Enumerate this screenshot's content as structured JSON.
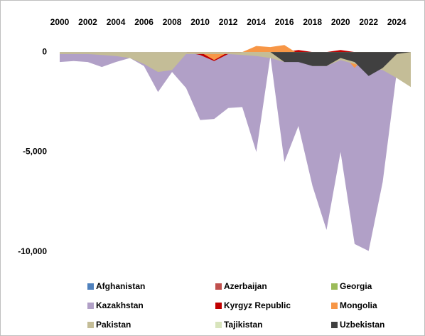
{
  "chart_data": {
    "type": "area",
    "x": [
      2000,
      2001,
      2002,
      2003,
      2004,
      2005,
      2006,
      2007,
      2008,
      2009,
      2010,
      2011,
      2012,
      2013,
      2014,
      2015,
      2016,
      2017,
      2018,
      2019,
      2020,
      2021,
      2022,
      2023,
      2024,
      2025
    ],
    "xticks": [
      2000,
      2002,
      2004,
      2006,
      2008,
      2010,
      2012,
      2014,
      2016,
      2018,
      2020,
      2022,
      2024
    ],
    "xlim": [
      2000,
      2025
    ],
    "ylim": [
      1000,
      -10750
    ],
    "yticks": [
      0,
      {
        "value": -5000,
        "label": "-5,000"
      },
      {
        "value": -10000,
        "label": "-10,000"
      }
    ],
    "legend": "bottom",
    "series": [
      {
        "name": "Afghanistan",
        "color": "#4f81bd",
        "values": [
          0,
          0,
          0,
          0,
          0,
          0,
          0,
          0,
          0,
          0,
          0,
          0,
          0,
          0,
          0,
          0,
          0,
          0,
          0,
          0,
          0,
          0,
          0,
          0,
          0,
          0
        ]
      },
      {
        "name": "Azerbaijan",
        "color": "#c0504d",
        "values": [
          0,
          0,
          0,
          0,
          0,
          0,
          0,
          0,
          0,
          0,
          0,
          0,
          0,
          0,
          0,
          0,
          0,
          0,
          0,
          0,
          0,
          0,
          0,
          0,
          0,
          0
        ]
      },
      {
        "name": "Georgia",
        "color": "#9bbb59",
        "values": [
          0,
          0,
          0,
          0,
          0,
          0,
          0,
          0,
          0,
          0,
          0,
          0,
          0,
          0,
          0,
          0,
          0,
          0,
          0,
          0,
          0,
          0,
          0,
          0,
          0,
          0
        ]
      },
      {
        "name": "Kazakhstan",
        "color": "#b1a0c7",
        "values": [
          -500,
          -450,
          -500,
          -750,
          -500,
          -300,
          -700,
          -2000,
          -1000,
          -1800,
          -3400,
          -3350,
          -2800,
          -2750,
          -5000,
          -200,
          -5500,
          -3700,
          -6700,
          -8900,
          -5000,
          -9600,
          -9950,
          -6500,
          -1000,
          0
        ]
      },
      {
        "name": "Kyrgyz Republic",
        "color": "#c00000",
        "values": [
          0,
          0,
          0,
          0,
          0,
          0,
          0,
          0,
          0,
          0,
          -150,
          -450,
          -100,
          0,
          0,
          0,
          0,
          100,
          0,
          0,
          100,
          0,
          0,
          0,
          0,
          0
        ]
      },
      {
        "name": "Mongolia",
        "color": "#f79646",
        "values": [
          0,
          0,
          0,
          0,
          0,
          0,
          0,
          0,
          0,
          0,
          0,
          -400,
          0,
          0,
          300,
          250,
          350,
          -100,
          0,
          0,
          0,
          -800,
          0,
          0,
          0,
          0
        ]
      },
      {
        "name": "Pakistan",
        "color": "#c4bd97",
        "values": [
          -100,
          -100,
          -100,
          -150,
          -200,
          -300,
          -600,
          -1000,
          -900,
          -100,
          -100,
          -100,
          -100,
          -150,
          -200,
          -300,
          -500,
          -400,
          -700,
          -700,
          -400,
          -600,
          -800,
          -900,
          -1300,
          -1750
        ]
      },
      {
        "name": "Tajikistan",
        "color": "#d8e4bc",
        "values": [
          0,
          0,
          0,
          0,
          0,
          0,
          0,
          0,
          0,
          0,
          0,
          0,
          0,
          0,
          0,
          0,
          0,
          0,
          0,
          0,
          0,
          0,
          0,
          0,
          0,
          0
        ]
      },
      {
        "name": "Uzbekistan",
        "color": "#404040",
        "values": [
          0,
          0,
          0,
          0,
          0,
          0,
          0,
          0,
          0,
          0,
          0,
          0,
          0,
          0,
          0,
          0,
          -500,
          -500,
          -700,
          -700,
          -300,
          -500,
          -1200,
          -800,
          -100,
          0
        ]
      }
    ]
  }
}
